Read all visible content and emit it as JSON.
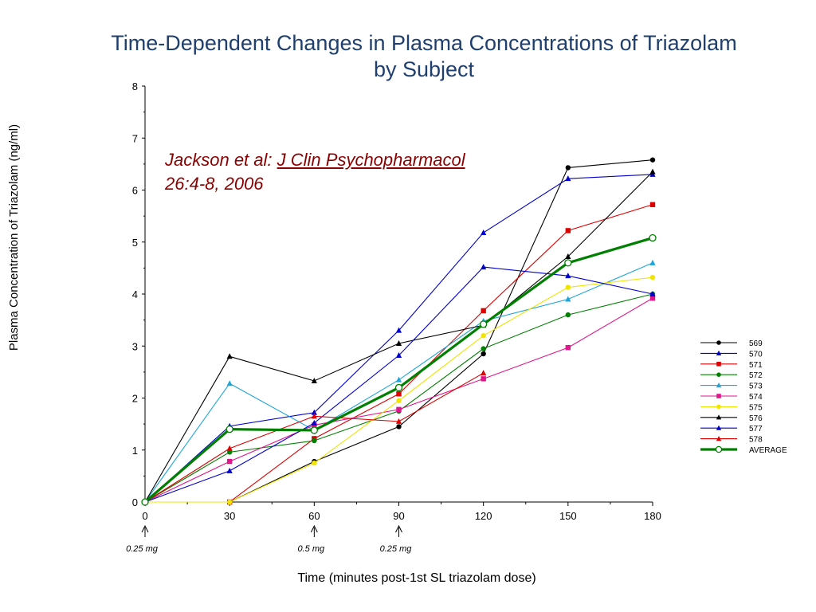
{
  "chart_data": {
    "type": "line",
    "title": [
      "Time-Dependent Changes in Plasma Concentrations of Triazolam",
      "by Subject"
    ],
    "xlabel": "Time (minutes post-1st SL triazolam dose)",
    "ylabel": "Plasma Concentration of Triazolam (ng/ml)",
    "x": [
      0,
      30,
      60,
      90,
      120,
      150,
      180
    ],
    "xlim": [
      0,
      180
    ],
    "ylim": [
      0,
      8
    ],
    "xticks": [
      "0",
      "30",
      "60",
      "90",
      "120",
      "150",
      "180"
    ],
    "yticks": [
      "0",
      "1",
      "2",
      "3",
      "4",
      "5",
      "6",
      "7",
      "8"
    ],
    "grid": false,
    "legend": "right",
    "dose_markers": [
      {
        "x": 0,
        "label": "0.25 mg"
      },
      {
        "x": 60,
        "label": "0.5 mg"
      },
      {
        "x": 90,
        "label": "0.25 mg"
      }
    ],
    "series": [
      {
        "name": "569",
        "color": "#000000",
        "marker": "circle",
        "values": [
          0,
          0,
          0.78,
          1.45,
          2.85,
          6.43,
          6.58
        ]
      },
      {
        "name": "570",
        "color": "#0000cc",
        "marker": "triangle",
        "values": [
          0,
          1.46,
          1.72,
          3.3,
          5.18,
          6.22,
          6.3
        ]
      },
      {
        "name": "571",
        "color": "#dd0000",
        "marker": "square",
        "values": [
          0,
          0,
          1.22,
          2.08,
          3.68,
          5.22,
          5.72
        ]
      },
      {
        "name": "572",
        "color": "#008000",
        "marker": "circle",
        "values": [
          0,
          0.96,
          1.18,
          1.75,
          2.95,
          3.6,
          4.0
        ]
      },
      {
        "name": "573",
        "color": "#1ea6d8",
        "marker": "triangle",
        "values": [
          0,
          2.28,
          1.38,
          2.35,
          3.48,
          3.9,
          4.6
        ]
      },
      {
        "name": "574",
        "color": "#e0168c",
        "marker": "square",
        "values": [
          0,
          0.78,
          1.48,
          1.78,
          2.37,
          2.97,
          3.92
        ]
      },
      {
        "name": "575",
        "color": "#f0e400",
        "marker": "circle",
        "values": [
          0,
          0,
          0.75,
          1.95,
          3.2,
          4.13,
          4.32
        ]
      },
      {
        "name": "576",
        "color": "#000000",
        "marker": "triangle",
        "values": [
          0,
          2.8,
          2.33,
          3.05,
          3.4,
          4.72,
          6.35
        ]
      },
      {
        "name": "577",
        "color": "#0000cc",
        "marker": "triangle",
        "values": [
          0,
          0.6,
          1.52,
          2.82,
          4.52,
          4.35,
          4.0
        ]
      },
      {
        "name": "578",
        "color": "#dd0000",
        "marker": "triangle",
        "values": [
          0,
          1.03,
          1.65,
          1.55,
          2.48,
          null,
          null
        ]
      },
      {
        "name": "AVERAGE",
        "color": "#008000",
        "marker": "open-circle",
        "bold": true,
        "values": [
          0,
          1.4,
          1.38,
          2.2,
          3.42,
          4.6,
          5.08
        ]
      }
    ]
  },
  "citation": {
    "authors": "Jackson et al: ",
    "journal": "J Clin Psychopharmacol",
    "volume": "26:4-8, 2006"
  }
}
